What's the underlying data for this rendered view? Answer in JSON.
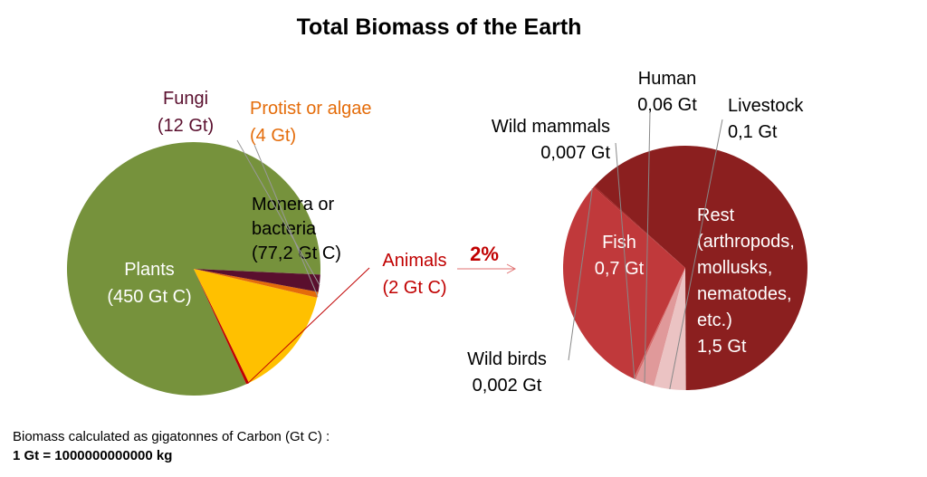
{
  "title": "Total Biomass of the Earth",
  "colors": {
    "plants": "#76923c",
    "fungi": "#5a0f2e",
    "protist": "#e46c0a",
    "bacteria": "#ffc000",
    "animals": "#c00000",
    "rest": "#8b1f1f",
    "fish": "#c0393b",
    "wild_birds": "#a02020",
    "wild_mammals": "#d46a6a",
    "human": "#e0999a",
    "livestock": "#ebc3c3"
  },
  "chart_data": [
    {
      "type": "pie",
      "unit": "Gt C",
      "slices": [
        {
          "key": "plants",
          "value": 450,
          "label_lines": [
            "Plants",
            "(450 Gt C)"
          ],
          "label_color": "#ffffff"
        },
        {
          "key": "animals",
          "value": 2,
          "label_lines": [
            "Animals",
            "(2 Gt C)"
          ],
          "label_color": "#c00000"
        },
        {
          "key": "bacteria",
          "value": 77.2,
          "label_lines": [
            "Monera or",
            "bacteria",
            "(77,2 Gt C)"
          ],
          "label_color": "#000000"
        },
        {
          "key": "protist",
          "value": 4,
          "label_lines": [
            "Protist or algae",
            "(4 Gt)"
          ],
          "label_color": "#e46c0a"
        },
        {
          "key": "fungi",
          "value": 12,
          "label_lines": [
            "Fungi",
            "(12 Gt)"
          ],
          "label_color": "#5a0f2e"
        }
      ]
    },
    {
      "type": "pie",
      "unit": "Gt",
      "callout": "2%",
      "slices": [
        {
          "key": "rest",
          "value": 1.5,
          "label_lines": [
            "Rest",
            "(arthropods,",
            "mollusks,",
            "nematodes,",
            "etc.)",
            "1,5 Gt"
          ],
          "label_color": "#ffffff"
        },
        {
          "key": "wild_birds",
          "value": 0.002,
          "label_lines": [
            "Wild birds",
            "0,002 Gt"
          ],
          "label_color": "#000000"
        },
        {
          "key": "fish",
          "value": 0.7,
          "label_lines": [
            "Fish",
            "0,7 Gt"
          ],
          "label_color": "#ffffff"
        },
        {
          "key": "wild_mammals",
          "value": 0.007,
          "label_lines": [
            "Wild mammals",
            "0,007 Gt"
          ],
          "label_color": "#000000"
        },
        {
          "key": "human",
          "value": 0.06,
          "label_lines": [
            "Human",
            "0,06 Gt"
          ],
          "label_color": "#000000"
        },
        {
          "key": "livestock",
          "value": 0.1,
          "label_lines": [
            "Livestock",
            "0,1 Gt"
          ],
          "label_color": "#000000"
        }
      ]
    }
  ],
  "footnote": {
    "line1": "Biomass calculated as gigatonnes of Carbon (Gt C) :",
    "line2": "1 Gt = 1000000000000 kg"
  }
}
